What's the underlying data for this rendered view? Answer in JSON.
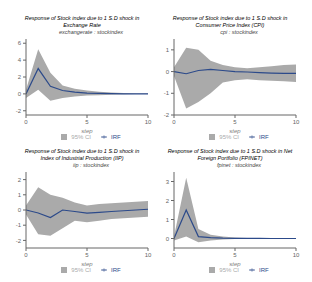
{
  "chart_data": [
    {
      "type": "line",
      "title": "Response of Stock index due to 1 S.D shock in\nExchange Rate",
      "subtitle": "exchangerate : stockindex",
      "xlabel": "step",
      "x": [
        0,
        1,
        2,
        3,
        4,
        5,
        6,
        7,
        8,
        9,
        10
      ],
      "series": [
        {
          "name": "95% CI",
          "type": "band",
          "color": "#aaaaaa",
          "lower": [
            -0.5,
            0.5,
            -0.8,
            -0.5,
            -0.3,
            -0.2,
            -0.15,
            -0.1,
            -0.05,
            -0.02,
            -0.02
          ],
          "upper": [
            0.5,
            5.3,
            2.5,
            1.0,
            0.6,
            0.4,
            0.25,
            0.15,
            0.1,
            0.05,
            0.05
          ]
        },
        {
          "name": "IRF",
          "type": "line",
          "color": "#2c4a8a",
          "values": [
            0.0,
            3.0,
            0.9,
            0.4,
            0.2,
            0.1,
            0.05,
            0.02,
            0.01,
            0.0,
            0.0
          ]
        }
      ],
      "xlim": [
        0,
        10
      ],
      "xticks": [
        0,
        5,
        10
      ],
      "ylim": [
        -2.5,
        6.5
      ],
      "yticks": [
        -2,
        0,
        2,
        4,
        6
      ],
      "grid": false,
      "legend": "bottom"
    },
    {
      "type": "line",
      "title": "Response of Stock index due to 1 S.D shock in\nConsumer Price Index (CPI)",
      "subtitle": "cpi : stockindex",
      "xlabel": "step",
      "x": [
        0,
        1,
        2,
        3,
        4,
        5,
        6,
        7,
        8,
        9,
        10
      ],
      "series": [
        {
          "name": "95% CI",
          "type": "band",
          "color": "#aaaaaa",
          "lower": [
            -0.2,
            -1.7,
            -1.4,
            -1.0,
            -0.5,
            -0.4,
            -0.35,
            -0.4,
            -0.42,
            -0.45,
            -0.48
          ],
          "upper": [
            0.2,
            1.1,
            1.0,
            0.5,
            0.3,
            0.2,
            0.15,
            0.2,
            0.25,
            0.3,
            0.32
          ]
        },
        {
          "name": "IRF",
          "type": "line",
          "color": "#2c4a8a",
          "values": [
            0.0,
            -0.1,
            0.05,
            0.1,
            0.05,
            0.0,
            -0.02,
            -0.05,
            -0.07,
            -0.08,
            -0.08
          ]
        }
      ],
      "xlim": [
        0,
        10
      ],
      "xticks": [
        0,
        5,
        10
      ],
      "ylim": [
        -2.0,
        1.5
      ],
      "yticks": [
        -2,
        -1,
        0,
        1
      ],
      "grid": false,
      "legend": "bottom"
    },
    {
      "type": "line",
      "title": "Response of Stock index due to 1 S.D shock in\nIndex of Industrial Production (IIP)",
      "subtitle": "iip : stockindex",
      "xlabel": "step",
      "x": [
        0,
        1,
        2,
        3,
        4,
        5,
        6,
        7,
        8,
        9,
        10
      ],
      "series": [
        {
          "name": "95% CI",
          "type": "band",
          "color": "#aaaaaa",
          "lower": [
            -0.3,
            -1.6,
            -1.7,
            -1.2,
            -0.7,
            -0.8,
            -0.7,
            -0.6,
            -0.55,
            -0.5,
            -0.45
          ],
          "upper": [
            0.3,
            1.5,
            1.0,
            0.8,
            0.5,
            0.3,
            0.4,
            0.45,
            0.5,
            0.55,
            0.6
          ]
        },
        {
          "name": "IRF",
          "type": "line",
          "color": "#2c4a8a",
          "values": [
            0.0,
            -0.2,
            -0.5,
            0.0,
            -0.1,
            -0.2,
            -0.15,
            -0.1,
            -0.05,
            0.0,
            0.05
          ]
        }
      ],
      "xlim": [
        0,
        10
      ],
      "xticks": [
        0,
        5,
        10
      ],
      "ylim": [
        -2.5,
        2.5
      ],
      "yticks": [
        -2,
        -1,
        0,
        1,
        2
      ],
      "grid": false,
      "legend": "bottom"
    },
    {
      "type": "line",
      "title": "Response of Stock index due to 1 S.D shock in Net\nForeign Portfolio (FPINET)",
      "subtitle": "fpinet : stockindex",
      "xlabel": "step",
      "x": [
        0,
        1,
        2,
        3,
        4,
        5,
        6,
        7,
        8,
        9,
        10
      ],
      "series": [
        {
          "name": "95% CI",
          "type": "band",
          "color": "#aaaaaa",
          "lower": [
            -0.1,
            0.1,
            -0.2,
            -0.1,
            -0.05,
            -0.03,
            -0.02,
            -0.01,
            -0.005,
            -0.002,
            -0.002
          ],
          "upper": [
            0.1,
            3.2,
            0.5,
            0.2,
            0.1,
            0.05,
            0.03,
            0.02,
            0.01,
            0.005,
            0.005
          ]
        },
        {
          "name": "IRF",
          "type": "line",
          "color": "#2c4a8a",
          "values": [
            0.0,
            1.5,
            0.1,
            0.05,
            0.02,
            0.01,
            0.005,
            0.002,
            0.001,
            0.0,
            0.0
          ]
        }
      ],
      "xlim": [
        0,
        10
      ],
      "xticks": [
        0,
        5,
        10
      ],
      "ylim": [
        -0.5,
        3.5
      ],
      "yticks": [
        0,
        1,
        2,
        3
      ],
      "grid": false,
      "legend": "bottom"
    }
  ]
}
